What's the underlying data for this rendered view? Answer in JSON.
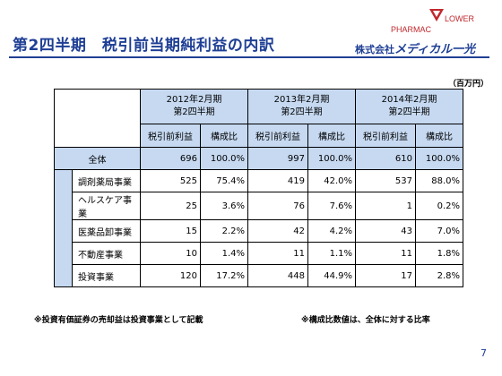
{
  "header": {
    "title": "第2四半期　税引前当期純利益の内訳",
    "logo_pharmac": "PHARMAC",
    "logo_flower": "LOWER",
    "company_prefix": "株式会社",
    "company_brand": "メディカル一光"
  },
  "unit": "（百万円）",
  "table": {
    "years": [
      "2012年2月期\n第2四半期",
      "2013年2月期\n第2四半期",
      "2014年2月期\n第2四半期"
    ],
    "sub_headers": [
      "税引前利益",
      "構成比",
      "税引前利益",
      "構成比",
      "税引前利益",
      "構成比"
    ],
    "total": {
      "label": "全体",
      "values": [
        "696",
        "100.0%",
        "997",
        "100.0%",
        "610",
        "100.0%"
      ]
    },
    "rows": [
      {
        "label": "調剤薬局事業",
        "values": [
          "525",
          "75.4%",
          "419",
          "42.0%",
          "537",
          "88.0%"
        ]
      },
      {
        "label": "ヘルスケア事業",
        "values": [
          "25",
          "3.6%",
          "76",
          "7.6%",
          "1",
          "0.2%"
        ]
      },
      {
        "label": "医薬品卸事業",
        "values": [
          "15",
          "2.2%",
          "42",
          "4.2%",
          "43",
          "7.0%"
        ]
      },
      {
        "label": "不動産事業",
        "values": [
          "10",
          "1.4%",
          "11",
          "1.1%",
          "11",
          "1.8%"
        ]
      },
      {
        "label": "投資事業",
        "values": [
          "120",
          "17.2%",
          "448",
          "44.9%",
          "17",
          "2.8%"
        ]
      }
    ]
  },
  "notes": {
    "left": "※投資有価証券の売却益は投資事業として記載",
    "right": "※構成比数値は、全体に対する比率"
  },
  "page_number": "7",
  "colors": {
    "title": "#1f3f95",
    "header_fill": "#c6d9f1",
    "logo": "#c0282c"
  }
}
